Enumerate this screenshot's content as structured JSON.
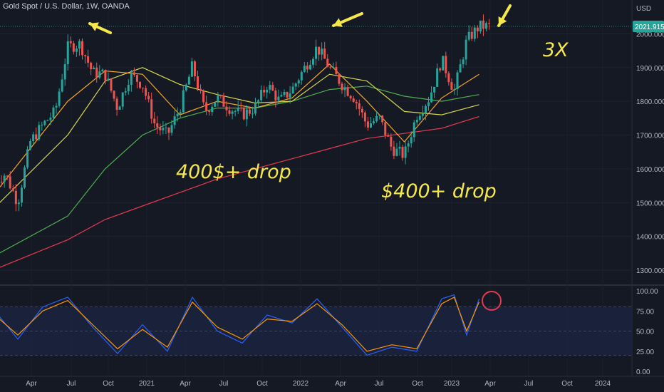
{
  "header": {
    "title": "Gold Spot / U.S. Dollar, 1W, OANDA"
  },
  "price_axis": {
    "currency": "USD",
    "ticks": [
      "2000.000",
      "1900.000",
      "1800.000",
      "1700.000",
      "1600.000",
      "1500.000",
      "1400.000",
      "1300.000"
    ],
    "last_price": "2021.915"
  },
  "rsi_axis": {
    "ticks": [
      "100.00",
      "75.00",
      "50.00",
      "25.00",
      "0.00"
    ]
  },
  "time_axis": {
    "ticks": [
      "Apr",
      "Jul",
      "Oct",
      "2021",
      "Apr",
      "Jul",
      "Oct",
      "2022",
      "Apr",
      "Jul",
      "Oct",
      "2023",
      "Apr",
      "Jul",
      "Oct",
      "2024"
    ]
  },
  "annotations": {
    "drop1": "400$+ drop",
    "drop2": "$400+ drop",
    "triple": "3X"
  },
  "colors": {
    "background": "#151924",
    "up": "#26a69a",
    "down": "#ef5350",
    "ma_fast": "#f5a623",
    "ma_mid": "#d6d84a",
    "ma_slow": "#4caf50",
    "ma_long": "#e53950",
    "rsi": "#2962ff",
    "rsi_signal": "#ff9800",
    "annotation": "#f5e84b",
    "last_price_badge": "#26a69a"
  },
  "chart_data": [
    {
      "type": "candlestick",
      "title": "Gold Spot / U.S. Dollar, 1W, OANDA",
      "x_ticks": [
        "Apr",
        "Jul",
        "Oct",
        "2021",
        "Apr",
        "Jul",
        "Oct",
        "2022",
        "Apr",
        "Jul",
        "Oct",
        "2023",
        "Apr",
        "Jul",
        "Oct",
        "2024"
      ],
      "ylim": [
        1260,
        2100
      ],
      "y_ticks": [
        1300,
        1400,
        1500,
        1600,
        1700,
        1800,
        1900,
        2000
      ],
      "last_price": 2021.915,
      "price_path": [
        [
          "2020-01",
          1560
        ],
        [
          "2020-02",
          1585
        ],
        [
          "2020-03",
          1500
        ],
        [
          "2020-04",
          1680
        ],
        [
          "2020-05",
          1730
        ],
        [
          "2020-06",
          1770
        ],
        [
          "2020-07",
          1960
        ],
        [
          "2020-08",
          1970
        ],
        [
          "2020-09",
          1885
        ],
        [
          "2020-10",
          1880
        ],
        [
          "2020-11",
          1780
        ],
        [
          "2020-12",
          1880
        ],
        [
          "2021-01",
          1850
        ],
        [
          "2021-02",
          1730
        ],
        [
          "2021-03",
          1700
        ],
        [
          "2021-04",
          1780
        ],
        [
          "2021-05",
          1905
        ],
        [
          "2021-06",
          1770
        ],
        [
          "2021-07",
          1810
        ],
        [
          "2021-08",
          1780
        ],
        [
          "2021-09",
          1760
        ],
        [
          "2021-10",
          1780
        ],
        [
          "2021-11",
          1850
        ],
        [
          "2021-12",
          1800
        ],
        [
          "2022-01",
          1835
        ],
        [
          "2022-02",
          1900
        ],
        [
          "2022-03",
          1960
        ],
        [
          "2022-04",
          1900
        ],
        [
          "2022-05",
          1850
        ],
        [
          "2022-06",
          1810
        ],
        [
          "2022-07",
          1730
        ],
        [
          "2022-08",
          1750
        ],
        [
          "2022-09",
          1660
        ],
        [
          "2022-10",
          1640
        ],
        [
          "2022-11",
          1760
        ],
        [
          "2022-12",
          1810
        ],
        [
          "2023-01",
          1925
        ],
        [
          "2023-02",
          1830
        ],
        [
          "2023-03",
          1980
        ],
        [
          "2023-04",
          2021.915
        ]
      ],
      "moving_averages": [
        {
          "color": "#f5a623",
          "values": [
            [
              "2020-01",
              1520
            ],
            [
              "2020-07",
              1800
            ],
            [
              "2020-10",
              1890
            ],
            [
              "2021-01",
              1880
            ],
            [
              "2021-04",
              1760
            ],
            [
              "2021-07",
              1800
            ],
            [
              "2021-10",
              1780
            ],
            [
              "2022-01",
              1810
            ],
            [
              "2022-04",
              1910
            ],
            [
              "2022-07",
              1800
            ],
            [
              "2022-10",
              1680
            ],
            [
              "2023-01",
              1810
            ],
            [
              "2023-04",
              1880
            ]
          ]
        },
        {
          "color": "#d6d84a",
          "values": [
            [
              "2020-01",
              1480
            ],
            [
              "2020-07",
              1700
            ],
            [
              "2020-10",
              1860
            ],
            [
              "2021-01",
              1900
            ],
            [
              "2021-04",
              1850
            ],
            [
              "2021-07",
              1820
            ],
            [
              "2021-10",
              1795
            ],
            [
              "2022-01",
              1800
            ],
            [
              "2022-04",
              1880
            ],
            [
              "2022-07",
              1860
            ],
            [
              "2022-10",
              1770
            ],
            [
              "2023-01",
              1760
            ],
            [
              "2023-04",
              1790
            ]
          ]
        },
        {
          "color": "#4caf50",
          "values": [
            [
              "2020-01",
              1340
            ],
            [
              "2020-07",
              1460
            ],
            [
              "2020-10",
              1600
            ],
            [
              "2021-01",
              1700
            ],
            [
              "2021-04",
              1750
            ],
            [
              "2021-07",
              1780
            ],
            [
              "2021-10",
              1780
            ],
            [
              "2022-01",
              1800
            ],
            [
              "2022-04",
              1835
            ],
            [
              "2022-07",
              1845
            ],
            [
              "2022-10",
              1815
            ],
            [
              "2023-01",
              1800
            ],
            [
              "2023-04",
              1820
            ]
          ]
        },
        {
          "color": "#e53950",
          "values": [
            [
              "2020-01",
              1300
            ],
            [
              "2020-07",
              1390
            ],
            [
              "2020-10",
              1450
            ],
            [
              "2021-01",
              1490
            ],
            [
              "2021-04",
              1530
            ],
            [
              "2021-07",
              1570
            ],
            [
              "2021-10",
              1600
            ],
            [
              "2022-01",
              1630
            ],
            [
              "2022-04",
              1660
            ],
            [
              "2022-07",
              1690
            ],
            [
              "2022-10",
              1705
            ],
            [
              "2023-01",
              1720
            ],
            [
              "2023-04",
              1755
            ]
          ]
        }
      ]
    },
    {
      "type": "line",
      "ylim": [
        0,
        100
      ],
      "y_ticks": [
        0,
        25,
        50,
        75,
        100
      ],
      "bands": [
        20,
        50,
        80
      ],
      "series": [
        {
          "color": "#2962ff",
          "values": [
            [
              "2020-01",
              78
            ],
            [
              "2020-03",
              40
            ],
            [
              "2020-05",
              80
            ],
            [
              "2020-07",
              92
            ],
            [
              "2020-09",
              55
            ],
            [
              "2020-11",
              22
            ],
            [
              "2021-01",
              58
            ],
            [
              "2021-03",
              25
            ],
            [
              "2021-05",
              92
            ],
            [
              "2021-07",
              50
            ],
            [
              "2021-09",
              35
            ],
            [
              "2021-11",
              70
            ],
            [
              "2022-01",
              60
            ],
            [
              "2022-03",
              90
            ],
            [
              "2022-05",
              55
            ],
            [
              "2022-07",
              20
            ],
            [
              "2022-09",
              30
            ],
            [
              "2022-11",
              25
            ],
            [
              "2023-01",
              90
            ],
            [
              "2023-02",
              95
            ],
            [
              "2023-03",
              45
            ],
            [
              "2023-04",
              90
            ]
          ]
        },
        {
          "color": "#ff9800",
          "values": [
            [
              "2020-01",
              72
            ],
            [
              "2020-03",
              45
            ],
            [
              "2020-05",
              75
            ],
            [
              "2020-07",
              88
            ],
            [
              "2020-09",
              58
            ],
            [
              "2020-11",
              28
            ],
            [
              "2021-01",
              52
            ],
            [
              "2021-03",
              30
            ],
            [
              "2021-05",
              86
            ],
            [
              "2021-07",
              55
            ],
            [
              "2021-09",
              40
            ],
            [
              "2021-11",
              65
            ],
            [
              "2022-01",
              62
            ],
            [
              "2022-03",
              84
            ],
            [
              "2022-05",
              58
            ],
            [
              "2022-07",
              25
            ],
            [
              "2022-09",
              33
            ],
            [
              "2022-11",
              28
            ],
            [
              "2023-01",
              84
            ],
            [
              "2023-02",
              92
            ],
            [
              "2023-03",
              50
            ],
            [
              "2023-04",
              86
            ]
          ]
        }
      ]
    }
  ]
}
